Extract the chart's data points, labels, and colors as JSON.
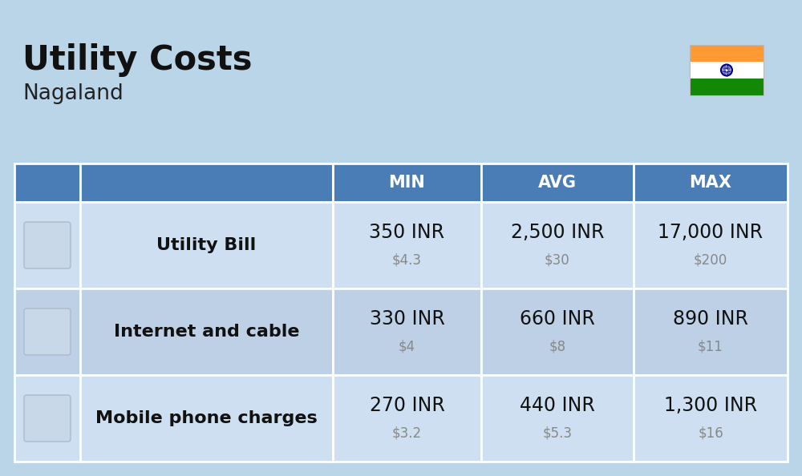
{
  "title": "Utility Costs",
  "subtitle": "Nagaland",
  "background_color": "#bad4e8",
  "header_bg_color": "#4a7db5",
  "header_text_color": "#ffffff",
  "row_colors": [
    "#cddff0",
    "#bdd0e6"
  ],
  "icon_col_bg_even": "#cddff0",
  "icon_col_bg_odd": "#bdd0e6",
  "table_border_color": "#ffffff",
  "rows": [
    {
      "label": "Utility Bill",
      "min_inr": "350 INR",
      "min_usd": "$4.3",
      "avg_inr": "2,500 INR",
      "avg_usd": "$30",
      "max_inr": "17,000 INR",
      "max_usd": "$200"
    },
    {
      "label": "Internet and cable",
      "min_inr": "330 INR",
      "min_usd": "$4",
      "avg_inr": "660 INR",
      "avg_usd": "$8",
      "max_inr": "890 INR",
      "max_usd": "$11"
    },
    {
      "label": "Mobile phone charges",
      "min_inr": "270 INR",
      "min_usd": "$3.2",
      "avg_inr": "440 INR",
      "avg_usd": "$5.3",
      "max_inr": "1,300 INR",
      "max_usd": "$16"
    }
  ],
  "title_fontsize": 30,
  "subtitle_fontsize": 19,
  "header_fontsize": 15,
  "cell_inr_fontsize": 17,
  "cell_usd_fontsize": 12,
  "label_fontsize": 16,
  "title_color": "#111111",
  "subtitle_color": "#222222",
  "label_color": "#111111",
  "cell_inr_color": "#111111",
  "cell_usd_color": "#888888",
  "flag_colors": [
    "#FF9933",
    "#FFFFFF",
    "#138808"
  ],
  "flag_navy": "#000080"
}
